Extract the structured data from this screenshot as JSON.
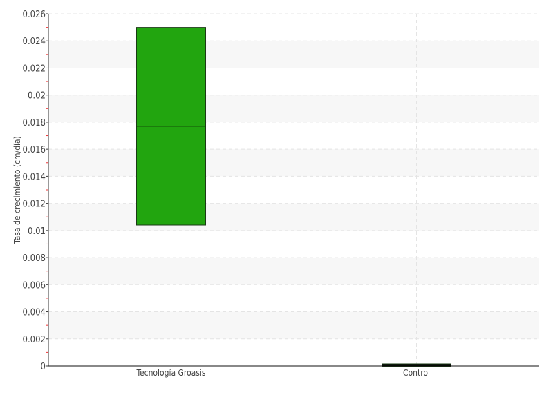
{
  "chart_data": {
    "type": "box",
    "title": "",
    "xlabel": "",
    "ylabel": "Tasa de crecimiento (cm/día)",
    "ylim": [
      0,
      0.026
    ],
    "yticks": [
      0,
      0.002,
      0.004,
      0.006,
      0.008,
      0.01,
      0.012,
      0.014,
      0.016,
      0.018,
      0.02,
      0.022,
      0.024,
      0.026
    ],
    "ytick_labels": [
      "0",
      "0.002",
      "0.004",
      "0.006",
      "0.008",
      "0.01",
      "0.012",
      "0.014",
      "0.016",
      "0.018",
      "0.02",
      "0.022",
      "0.024",
      "0.026"
    ],
    "grid": true,
    "categories": [
      "Tecnología Groasis",
      "Control"
    ],
    "boxes": [
      {
        "category": "Tecnología Groasis",
        "q1": 0.0104,
        "median": 0.0177,
        "q3": 0.025,
        "color": "#22a50f"
      },
      {
        "category": "Control",
        "q1": 0,
        "median": 0,
        "q3": 0.0001,
        "color": "#000000"
      }
    ]
  }
}
